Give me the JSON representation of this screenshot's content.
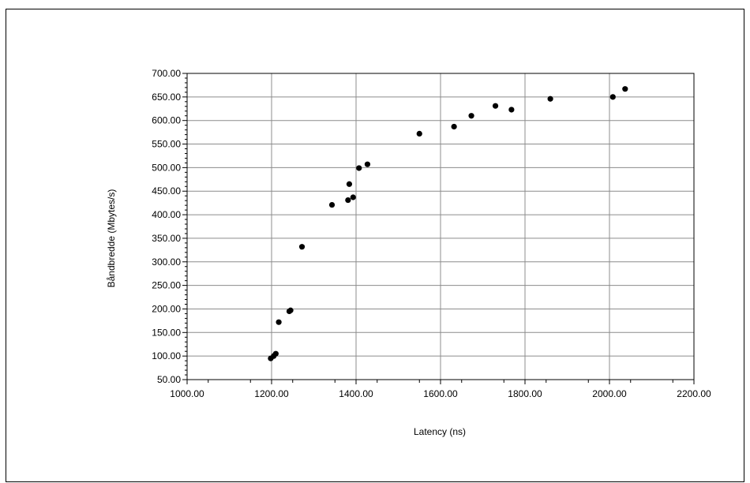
{
  "chart_data": {
    "type": "scatter",
    "title": "",
    "xlabel": "Latency (ns)",
    "ylabel": "Båndbredde (Mbytes/s)",
    "xlim": [
      1000,
      2200
    ],
    "ylim": [
      50,
      700
    ],
    "xticks": [
      "1000.00",
      "1200.00",
      "1400.00",
      "1600.00",
      "1800.00",
      "2000.00",
      "2200.00"
    ],
    "yticks": [
      "50.00",
      "100.00",
      "150.00",
      "200.00",
      "250.00",
      "300.00",
      "350.00",
      "400.00",
      "450.00",
      "500.00",
      "550.00",
      "600.00",
      "650.00",
      "700.00"
    ],
    "grid": true,
    "marker_color": "#000000",
    "points": [
      {
        "x": 1198,
        "y": 95
      },
      {
        "x": 1205,
        "y": 100
      },
      {
        "x": 1210,
        "y": 105
      },
      {
        "x": 1217,
        "y": 172
      },
      {
        "x": 1242,
        "y": 195
      },
      {
        "x": 1245,
        "y": 197
      },
      {
        "x": 1272,
        "y": 332
      },
      {
        "x": 1343,
        "y": 421
      },
      {
        "x": 1381,
        "y": 431
      },
      {
        "x": 1384,
        "y": 465
      },
      {
        "x": 1393,
        "y": 437
      },
      {
        "x": 1407,
        "y": 499
      },
      {
        "x": 1427,
        "y": 507
      },
      {
        "x": 1550,
        "y": 572
      },
      {
        "x": 1632,
        "y": 587
      },
      {
        "x": 1673,
        "y": 610
      },
      {
        "x": 1730,
        "y": 631
      },
      {
        "x": 1768,
        "y": 623
      },
      {
        "x": 1860,
        "y": 646
      },
      {
        "x": 2008,
        "y": 650
      },
      {
        "x": 2037,
        "y": 667
      }
    ]
  }
}
